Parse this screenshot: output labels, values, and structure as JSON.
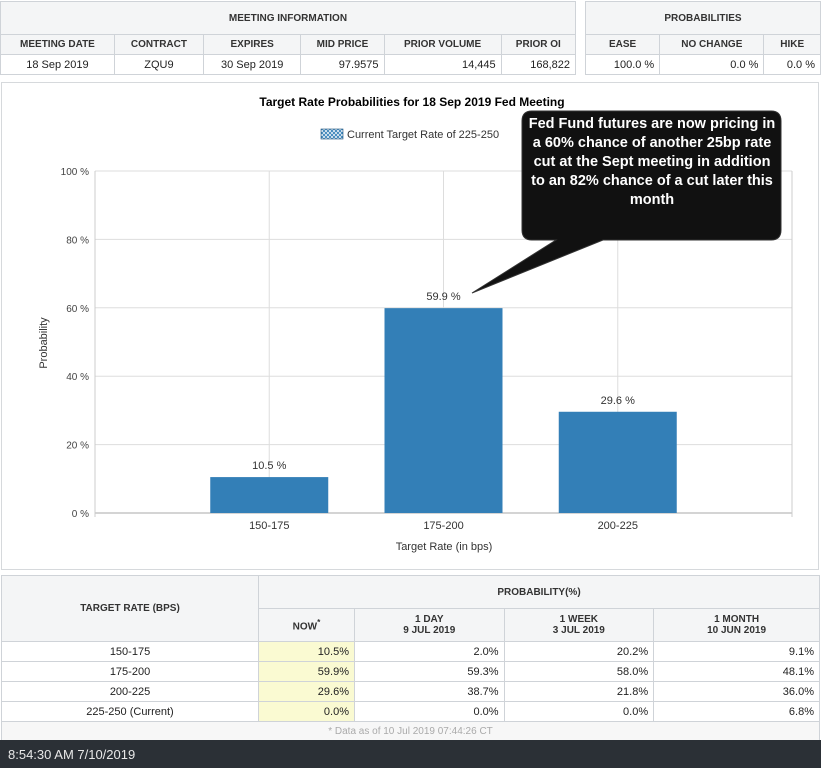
{
  "meeting_info": {
    "title": "MEETING INFORMATION",
    "headers": [
      "MEETING DATE",
      "CONTRACT",
      "EXPIRES",
      "MID PRICE",
      "PRIOR VOLUME",
      "PRIOR OI"
    ],
    "values": [
      "18 Sep 2019",
      "ZQU9",
      "30 Sep 2019",
      "97.9575",
      "14,445",
      "168,822"
    ]
  },
  "probabilities": {
    "title": "PROBABILITIES",
    "headers": [
      "EASE",
      "NO CHANGE",
      "HIKE"
    ],
    "values": [
      "100.0 %",
      "0.0 %",
      "0.0 %"
    ]
  },
  "chart_data": {
    "type": "bar",
    "title": "Target Rate Probabilities for 18 Sep 2019 Fed Meeting",
    "legend": "Current Target Rate of 225-250",
    "xlabel": "Target Rate (in bps)",
    "ylabel": "Probability",
    "categories": [
      "150-175",
      "175-200",
      "200-225"
    ],
    "values": [
      10.5,
      59.9,
      29.6
    ],
    "data_labels": [
      "10.5 %",
      "59.9 %",
      "29.6 %"
    ],
    "ylim": [
      0,
      100
    ],
    "yticks": [
      "0 %",
      "20 %",
      "40 %",
      "60 %",
      "80 %",
      "100 %"
    ],
    "grid": true,
    "bar_color": "#337fb7"
  },
  "annotation": "Fed Fund futures are now pricing in a 60% chance of another 25bp rate cut at the Sept meeting in addition to an 82% chance of a cut later this month",
  "prob_table": {
    "row_header": "TARGET RATE (BPS)",
    "group_header": "PROBABILITY(%)",
    "cols": [
      {
        "l1": "NOW",
        "sup": "*"
      },
      {
        "l1": "1 DAY",
        "l2": "9 JUL 2019"
      },
      {
        "l1": "1 WEEK",
        "l2": "3 JUL 2019"
      },
      {
        "l1": "1 MONTH",
        "l2": "10 JUN 2019"
      }
    ],
    "rows": [
      {
        "rate": "150-175",
        "v": [
          "10.5%",
          "2.0%",
          "20.2%",
          "9.1%"
        ]
      },
      {
        "rate": "175-200",
        "v": [
          "59.9%",
          "59.3%",
          "58.0%",
          "48.1%"
        ]
      },
      {
        "rate": "200-225",
        "v": [
          "29.6%",
          "38.7%",
          "21.8%",
          "36.0%"
        ]
      },
      {
        "rate": "225-250 (Current)",
        "v": [
          "0.0%",
          "0.0%",
          "0.0%",
          "6.8%"
        ]
      }
    ],
    "footnote": "* Data as of 10 Jul 2019 07:44:26 CT"
  },
  "status_time": "8:54:30 AM 7/10/2019"
}
